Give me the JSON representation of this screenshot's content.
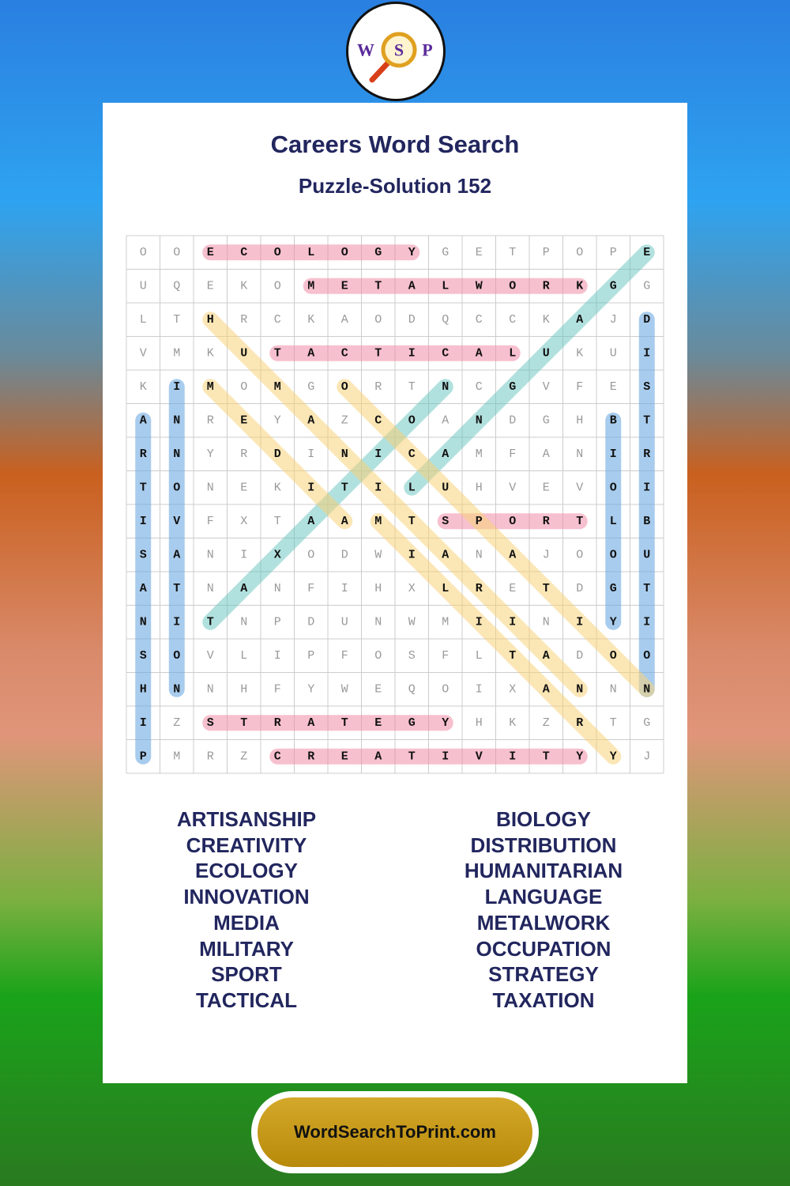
{
  "logo": {
    "letters": [
      "W",
      "S",
      "P"
    ]
  },
  "header": {
    "title": "Careers Word Search",
    "subtitle": "Puzzle-Solution 152"
  },
  "grid": {
    "rows": [
      [
        "O",
        "O",
        "E",
        "C",
        "O",
        "L",
        "O",
        "G",
        "Y",
        "G",
        "E",
        "T",
        "P",
        "O",
        "P",
        "E"
      ],
      [
        "U",
        "Q",
        "E",
        "K",
        "O",
        "M",
        "E",
        "T",
        "A",
        "L",
        "W",
        "O",
        "R",
        "K",
        "G",
        "G"
      ],
      [
        "L",
        "T",
        "H",
        "R",
        "C",
        "K",
        "A",
        "O",
        "D",
        "Q",
        "C",
        "C",
        "K",
        "A",
        "J",
        "D"
      ],
      [
        "V",
        "M",
        "K",
        "U",
        "T",
        "A",
        "C",
        "T",
        "I",
        "C",
        "A",
        "L",
        "U",
        "K",
        "U",
        "I"
      ],
      [
        "K",
        "I",
        "M",
        "O",
        "M",
        "G",
        "O",
        "R",
        "T",
        "N",
        "C",
        "G",
        "V",
        "F",
        "E",
        "S"
      ],
      [
        "A",
        "N",
        "R",
        "E",
        "Y",
        "A",
        "Z",
        "C",
        "O",
        "A",
        "N",
        "D",
        "G",
        "H",
        "B",
        "T"
      ],
      [
        "R",
        "N",
        "Y",
        "R",
        "D",
        "I",
        "N",
        "I",
        "C",
        "A",
        "M",
        "F",
        "A",
        "N",
        "I",
        "R"
      ],
      [
        "T",
        "O",
        "N",
        "E",
        "K",
        "I",
        "T",
        "I",
        "L",
        "U",
        "H",
        "V",
        "E",
        "V",
        "O",
        "I"
      ],
      [
        "I",
        "V",
        "F",
        "X",
        "T",
        "A",
        "A",
        "M",
        "T",
        "S",
        "P",
        "O",
        "R",
        "T",
        "L",
        "B"
      ],
      [
        "S",
        "A",
        "N",
        "I",
        "X",
        "O",
        "D",
        "W",
        "I",
        "A",
        "N",
        "A",
        "J",
        "O",
        "O",
        "U"
      ],
      [
        "A",
        "T",
        "N",
        "A",
        "N",
        "F",
        "I",
        "H",
        "X",
        "L",
        "R",
        "E",
        "T",
        "D",
        "G",
        "T"
      ],
      [
        "N",
        "I",
        "T",
        "N",
        "P",
        "D",
        "U",
        "N",
        "W",
        "M",
        "I",
        "I",
        "N",
        "I",
        "Y",
        "I"
      ],
      [
        "S",
        "O",
        "V",
        "L",
        "I",
        "P",
        "F",
        "O",
        "S",
        "F",
        "L",
        "T",
        "A",
        "D",
        "O",
        "O"
      ],
      [
        "H",
        "N",
        "N",
        "H",
        "F",
        "Y",
        "W",
        "E",
        "Q",
        "O",
        "I",
        "X",
        "A",
        "N",
        "N",
        "N"
      ],
      [
        "I",
        "Z",
        "S",
        "T",
        "R",
        "A",
        "T",
        "E",
        "G",
        "Y",
        "H",
        "K",
        "Z",
        "R",
        "T",
        "G"
      ],
      [
        "P",
        "M",
        "R",
        "Z",
        "C",
        "R",
        "E",
        "A",
        "T",
        "I",
        "V",
        "I",
        "T",
        "Y",
        "Y",
        "J"
      ]
    ]
  },
  "word_list": {
    "left": [
      "ARTISANSHIP",
      "CREATIVITY",
      "ECOLOGY",
      "INNOVATION",
      "MEDIA",
      "MILITARY",
      "SPORT",
      "TACTICAL"
    ],
    "right": [
      "BIOLOGY",
      "DISTRIBUTION",
      "HUMANITARIAN",
      "LANGUAGE",
      "METALWORK",
      "OCCUPATION",
      "STRATEGY",
      "TAXATION"
    ]
  },
  "footer": {
    "link": "WordSearchToPrint.com"
  }
}
